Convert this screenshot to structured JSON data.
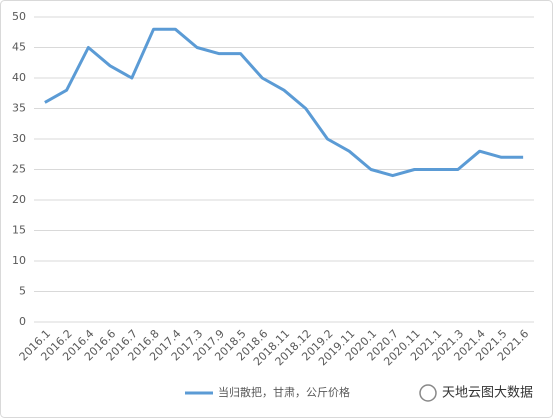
{
  "chart_data": {
    "type": "line",
    "categories": [
      "2016.1",
      "2016.2",
      "2016.4",
      "2016.6",
      "2016.7",
      "2016.8",
      "2017.4",
      "2017.3",
      "2017.9",
      "2018.5",
      "2018.6",
      "2018.11",
      "2018.12",
      "2019.2",
      "2019.11",
      "2020.1",
      "2020.7",
      "2020.11",
      "2021.1",
      "2021.3",
      "2021.4",
      "2021.5",
      "2021.6"
    ],
    "series": [
      {
        "name": "当归散把，甘肃，公斤价格",
        "color": "#5b9bd5",
        "values": [
          36,
          38,
          45,
          42,
          40,
          48,
          48,
          45,
          44,
          44,
          40,
          38,
          35,
          30,
          28,
          25,
          24,
          25,
          25,
          25,
          28,
          27,
          27
        ]
      }
    ],
    "ylim": [
      0,
      50
    ],
    "yticks": [
      0,
      5,
      10,
      15,
      20,
      25,
      30,
      35,
      40,
      45,
      50
    ],
    "grid": true,
    "legend": "bottom"
  },
  "watermark": "天地云图大数据"
}
